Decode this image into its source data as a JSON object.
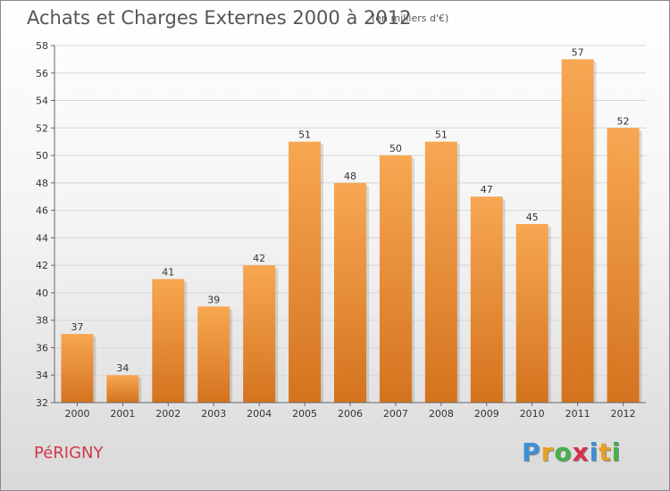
{
  "chart_data": {
    "type": "bar",
    "title": "Achats et Charges Externes 2000 à 2012",
    "subtitle": "(en milliers d'€)",
    "categories": [
      "2000",
      "2001",
      "2002",
      "2003",
      "2004",
      "2005",
      "2006",
      "2007",
      "2008",
      "2009",
      "2010",
      "2011",
      "2012"
    ],
    "values": [
      37,
      34,
      41,
      39,
      42,
      51,
      48,
      50,
      51,
      47,
      45,
      57,
      52
    ],
    "ylim": [
      32,
      58
    ],
    "yticks": [
      32,
      34,
      36,
      38,
      40,
      42,
      44,
      46,
      48,
      50,
      52,
      54,
      56,
      58
    ],
    "grid": true,
    "xlabel": "",
    "ylabel": "",
    "bar_color_light": "#f8a752",
    "bar_color_dark": "#d4731e"
  },
  "footer": {
    "commune": "PéRIGNY",
    "brand_letters": [
      {
        "ch": "P",
        "color": "#3f8fd6"
      },
      {
        "ch": "r",
        "color": "#e8a021"
      },
      {
        "ch": "o",
        "color": "#46b04a"
      },
      {
        "ch": "x",
        "color": "#d6314a"
      },
      {
        "ch": "i",
        "color": "#3f8fd6"
      },
      {
        "ch": "t",
        "color": "#e8a021"
      },
      {
        "ch": "i",
        "color": "#46b04a"
      }
    ]
  }
}
